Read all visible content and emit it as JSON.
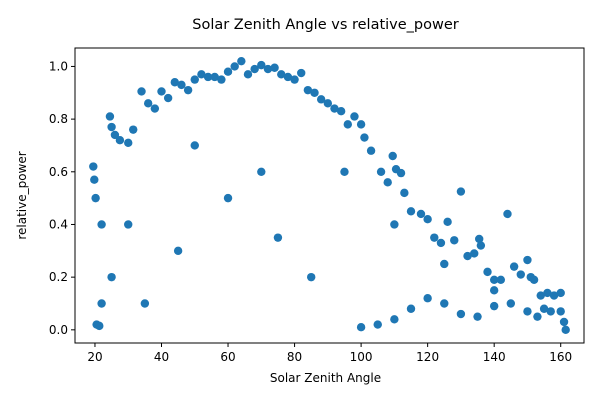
{
  "chart_data": {
    "type": "scatter",
    "title": "Solar Zenith Angle vs relative_power",
    "xlabel": "Solar Zenith Angle",
    "ylabel": "relative_power",
    "xlim": [
      14,
      167
    ],
    "ylim": [
      -0.05,
      1.07
    ],
    "xticks": [
      20,
      40,
      60,
      80,
      100,
      120,
      140,
      160
    ],
    "yticks": [
      0.0,
      0.2,
      0.4,
      0.6,
      0.8,
      1.0
    ],
    "xtick_labels": [
      "20",
      "40",
      "60",
      "80",
      "100",
      "120",
      "140",
      "160"
    ],
    "ytick_labels": [
      "0.0",
      "0.2",
      "0.4",
      "0.6",
      "0.8",
      "1.0"
    ],
    "grid": false,
    "series": [
      {
        "color": "#1f77b4",
        "points": [
          [
            19.5,
            0.62
          ],
          [
            19.8,
            0.57
          ],
          [
            20.2,
            0.5
          ],
          [
            20.5,
            0.02
          ],
          [
            21.3,
            0.015
          ],
          [
            24.5,
            0.81
          ],
          [
            25.0,
            0.77
          ],
          [
            26.0,
            0.74
          ],
          [
            27.5,
            0.72
          ],
          [
            30.0,
            0.71
          ],
          [
            31.5,
            0.76
          ],
          [
            34.0,
            0.905
          ],
          [
            36.0,
            0.86
          ],
          [
            38.0,
            0.84
          ],
          [
            40.0,
            0.905
          ],
          [
            42.0,
            0.88
          ],
          [
            44.0,
            0.94
          ],
          [
            46.0,
            0.93
          ],
          [
            48.0,
            0.91
          ],
          [
            50.0,
            0.95
          ],
          [
            52.0,
            0.97
          ],
          [
            54.0,
            0.96
          ],
          [
            56.0,
            0.96
          ],
          [
            58.0,
            0.95
          ],
          [
            60.0,
            0.98
          ],
          [
            62.0,
            1.0
          ],
          [
            64.0,
            1.02
          ],
          [
            66.0,
            0.97
          ],
          [
            68.0,
            0.99
          ],
          [
            70.0,
            1.005
          ],
          [
            72.0,
            0.99
          ],
          [
            74.0,
            0.995
          ],
          [
            76.0,
            0.97
          ],
          [
            78.0,
            0.96
          ],
          [
            80.0,
            0.95
          ],
          [
            82.0,
            0.975
          ],
          [
            84.0,
            0.91
          ],
          [
            86.0,
            0.9
          ],
          [
            88.0,
            0.875
          ],
          [
            90.0,
            0.86
          ],
          [
            92.0,
            0.84
          ],
          [
            94.0,
            0.83
          ],
          [
            96.0,
            0.78
          ],
          [
            98.0,
            0.81
          ],
          [
            100.0,
            0.78
          ],
          [
            101.0,
            0.73
          ],
          [
            103.0,
            0.68
          ],
          [
            106.0,
            0.6
          ],
          [
            108.0,
            0.56
          ],
          [
            109.5,
            0.66
          ],
          [
            110.5,
            0.61
          ],
          [
            112.0,
            0.595
          ],
          [
            113.0,
            0.52
          ],
          [
            115.0,
            0.45
          ],
          [
            118.0,
            0.44
          ],
          [
            120.0,
            0.42
          ],
          [
            122.0,
            0.35
          ],
          [
            124.0,
            0.33
          ],
          [
            126.0,
            0.41
          ],
          [
            128.0,
            0.34
          ],
          [
            130.0,
            0.525
          ],
          [
            132.0,
            0.28
          ],
          [
            134.0,
            0.29
          ],
          [
            135.5,
            0.345
          ],
          [
            136.0,
            0.32
          ],
          [
            138.0,
            0.22
          ],
          [
            140.0,
            0.19
          ],
          [
            142.0,
            0.19
          ],
          [
            144.0,
            0.44
          ],
          [
            146.0,
            0.24
          ],
          [
            148.0,
            0.21
          ],
          [
            150.0,
            0.265
          ],
          [
            151.0,
            0.2
          ],
          [
            152.0,
            0.19
          ],
          [
            154.0,
            0.13
          ],
          [
            156.0,
            0.14
          ],
          [
            158.0,
            0.13
          ],
          [
            160.0,
            0.14
          ],
          [
            161.0,
            0.03
          ],
          [
            161.5,
            0.0
          ],
          [
            160.0,
            0.07
          ],
          [
            157.0,
            0.07
          ],
          [
            155.0,
            0.08
          ],
          [
            153.0,
            0.05
          ],
          [
            150.0,
            0.07
          ],
          [
            145.0,
            0.1
          ],
          [
            140.0,
            0.09
          ],
          [
            135.0,
            0.05
          ],
          [
            130.0,
            0.06
          ],
          [
            125.0,
            0.1
          ],
          [
            120.0,
            0.12
          ],
          [
            115.0,
            0.08
          ],
          [
            110.0,
            0.04
          ],
          [
            105.0,
            0.02
          ],
          [
            100.0,
            0.01
          ],
          [
            60.0,
            0.5
          ],
          [
            45.0,
            0.3
          ],
          [
            85.0,
            0.2
          ],
          [
            30.0,
            0.4
          ],
          [
            70.0,
            0.6
          ],
          [
            95.0,
            0.6
          ],
          [
            110.0,
            0.4
          ],
          [
            125.0,
            0.25
          ],
          [
            140.0,
            0.15
          ],
          [
            25.0,
            0.2
          ],
          [
            22.0,
            0.4
          ],
          [
            22.0,
            0.1
          ],
          [
            35.0,
            0.1
          ],
          [
            50.0,
            0.7
          ],
          [
            75.0,
            0.35
          ]
        ]
      }
    ]
  }
}
